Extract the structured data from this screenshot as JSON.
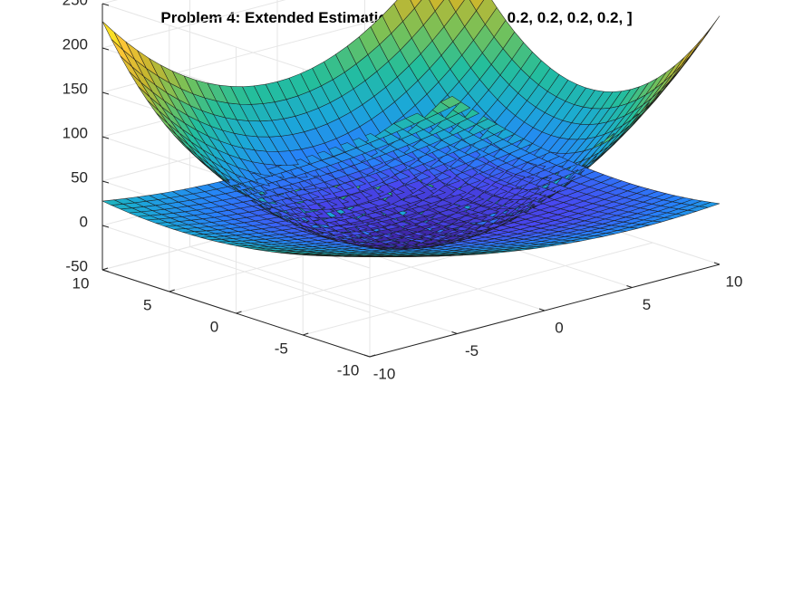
{
  "chart_data": {
    "type": "surface3d",
    "title_prefix": "Problem 4: Extended Estimation | x",
    "title_subscript": "0",
    "title_suffix": " = [1.2, 1.3, 0.2, 0.2, 0.2, 0.2, ]",
    "xlim": [
      -10,
      10
    ],
    "ylim": [
      -10,
      10
    ],
    "zlim": [
      -50,
      250
    ],
    "xticks": [
      "-10",
      "-5",
      "0",
      "5",
      "10"
    ],
    "yticks": [
      "-10",
      "-5",
      "0",
      "5",
      "10"
    ],
    "zticks": [
      "-50",
      "0",
      "50",
      "100",
      "150",
      "200",
      "250"
    ],
    "grid": true,
    "colormap": [
      "#3e26a8",
      "#4848f0",
      "#2781fa",
      "#1ba9d6",
      "#24be9c",
      "#74c15a",
      "#c6b62f",
      "#fbc535",
      "#f9fb15"
    ],
    "surfaces": [
      {
        "formula": "1.2*x^2 + 1.3*y^2 - 20",
        "corner_values": {
          "x-10_y-10": 230,
          "x10_y-10": 230,
          "x-10_y10": 230,
          "x10_y10": 230
        }
      },
      {
        "formula": "0.2*x^2 + 0.2*y^2 + ...",
        "corner_values": {
          "x-10_y-10": 40,
          "x10_y10": 40
        }
      }
    ]
  }
}
